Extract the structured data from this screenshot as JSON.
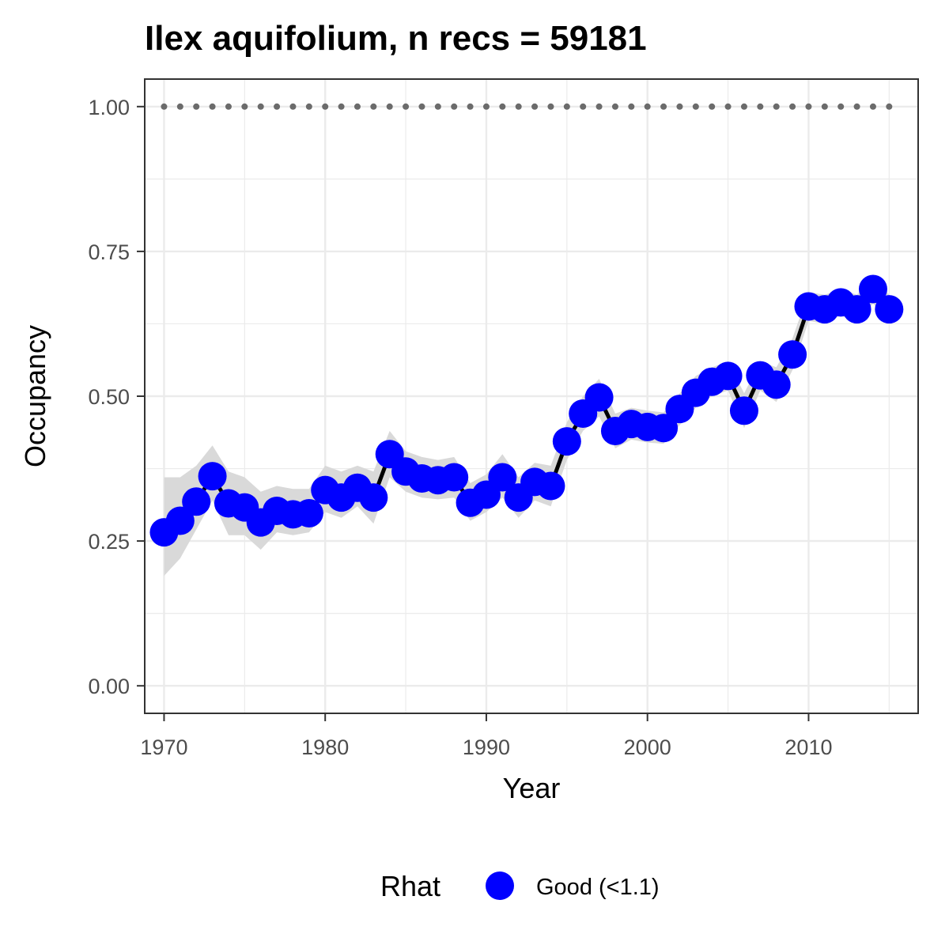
{
  "colors": {
    "points": "#0000FF",
    "line": "#000000",
    "ribbon": "#d9d9d9",
    "reference": "#6b6b6b",
    "grid": "#ebebeb",
    "panel_border": "#333333"
  },
  "chart_data": {
    "type": "line",
    "title": "Ilex aquifolium, n recs = 59181",
    "xlabel": "Year",
    "ylabel": "Occupancy",
    "xlim": [
      1968.8,
      2016.8
    ],
    "ylim": [
      -0.0475,
      1.0475
    ],
    "x_ticks": [
      1970,
      1980,
      1990,
      2000,
      2010
    ],
    "x_tick_labels": [
      "1970",
      "1980",
      "1990",
      "2000",
      "2010"
    ],
    "y_ticks": [
      0,
      0.25,
      0.5,
      0.75,
      1.0
    ],
    "y_tick_labels": [
      "0.00",
      "0.25",
      "0.50",
      "0.75",
      "1.00"
    ],
    "grid": true,
    "legend": {
      "title": "Rhat",
      "position": "bottom",
      "entries": [
        {
          "label": "Good (<1.1)",
          "color": "#0000FF"
        }
      ]
    },
    "series": [
      {
        "x": [
          1970,
          1971,
          1972,
          1973,
          1974,
          1975,
          1976,
          1977,
          1978,
          1979,
          1980,
          1981,
          1982,
          1983,
          1984,
          1985,
          1986,
          1987,
          1988,
          1989,
          1990,
          1991,
          1992,
          1993,
          1994,
          1995,
          1996,
          1997,
          1998,
          1999,
          2000,
          2001,
          2002,
          2003,
          2004,
          2005,
          2006,
          2007,
          2008,
          2009,
          2010,
          2011,
          2012,
          2013,
          2014,
          2015
        ],
        "y": [
          0.265,
          0.285,
          0.318,
          0.362,
          0.315,
          0.308,
          0.282,
          0.302,
          0.296,
          0.298,
          0.338,
          0.325,
          0.342,
          0.325,
          0.4,
          0.37,
          0.358,
          0.355,
          0.36,
          0.316,
          0.33,
          0.36,
          0.325,
          0.352,
          0.345,
          0.422,
          0.47,
          0.498,
          0.44,
          0.452,
          0.447,
          0.445,
          0.478,
          0.506,
          0.525,
          0.535,
          0.475,
          0.536,
          0.52,
          0.572,
          0.655,
          0.65,
          0.662,
          0.65,
          0.685,
          0.65
        ],
        "lower": [
          0.19,
          0.22,
          0.27,
          0.32,
          0.26,
          0.26,
          0.235,
          0.265,
          0.26,
          0.265,
          0.3,
          0.29,
          0.31,
          0.28,
          0.36,
          0.335,
          0.325,
          0.322,
          0.325,
          0.285,
          0.3,
          0.325,
          0.29,
          0.32,
          0.31,
          0.39,
          0.44,
          0.465,
          0.41,
          0.425,
          0.42,
          0.418,
          0.45,
          0.48,
          0.5,
          0.51,
          0.445,
          0.51,
          0.49,
          0.545,
          0.63,
          0.625,
          0.64,
          0.625,
          0.66,
          0.625
        ],
        "upper": [
          0.36,
          0.36,
          0.38,
          0.415,
          0.37,
          0.36,
          0.335,
          0.345,
          0.34,
          0.34,
          0.38,
          0.37,
          0.38,
          0.37,
          0.44,
          0.405,
          0.395,
          0.39,
          0.395,
          0.35,
          0.365,
          0.4,
          0.36,
          0.385,
          0.38,
          0.455,
          0.5,
          0.53,
          0.47,
          0.48,
          0.475,
          0.472,
          0.505,
          0.535,
          0.55,
          0.56,
          0.505,
          0.56,
          0.55,
          0.6,
          0.68,
          0.675,
          0.685,
          0.675,
          0.71,
          0.675
        ]
      },
      {
        "x": [
          1970,
          1971,
          1972,
          1973,
          1974,
          1975,
          1976,
          1977,
          1978,
          1979,
          1980,
          1981,
          1982,
          1983,
          1984,
          1985,
          1986,
          1987,
          1988,
          1989,
          1990,
          1991,
          1992,
          1993,
          1994,
          1995,
          1996,
          1997,
          1998,
          1999,
          2000,
          2001,
          2002,
          2003,
          2004,
          2005,
          2006,
          2007,
          2008,
          2009,
          2010,
          2011,
          2012,
          2013,
          2014,
          2015
        ],
        "y": [
          1,
          1,
          1,
          1,
          1,
          1,
          1,
          1,
          1,
          1,
          1,
          1,
          1,
          1,
          1,
          1,
          1,
          1,
          1,
          1,
          1,
          1,
          1,
          1,
          1,
          1,
          1,
          1,
          1,
          1,
          1,
          1,
          1,
          1,
          1,
          1,
          1,
          1,
          1,
          1,
          1,
          1,
          1,
          1,
          1,
          1
        ],
        "style": "dotted reference"
      }
    ]
  }
}
